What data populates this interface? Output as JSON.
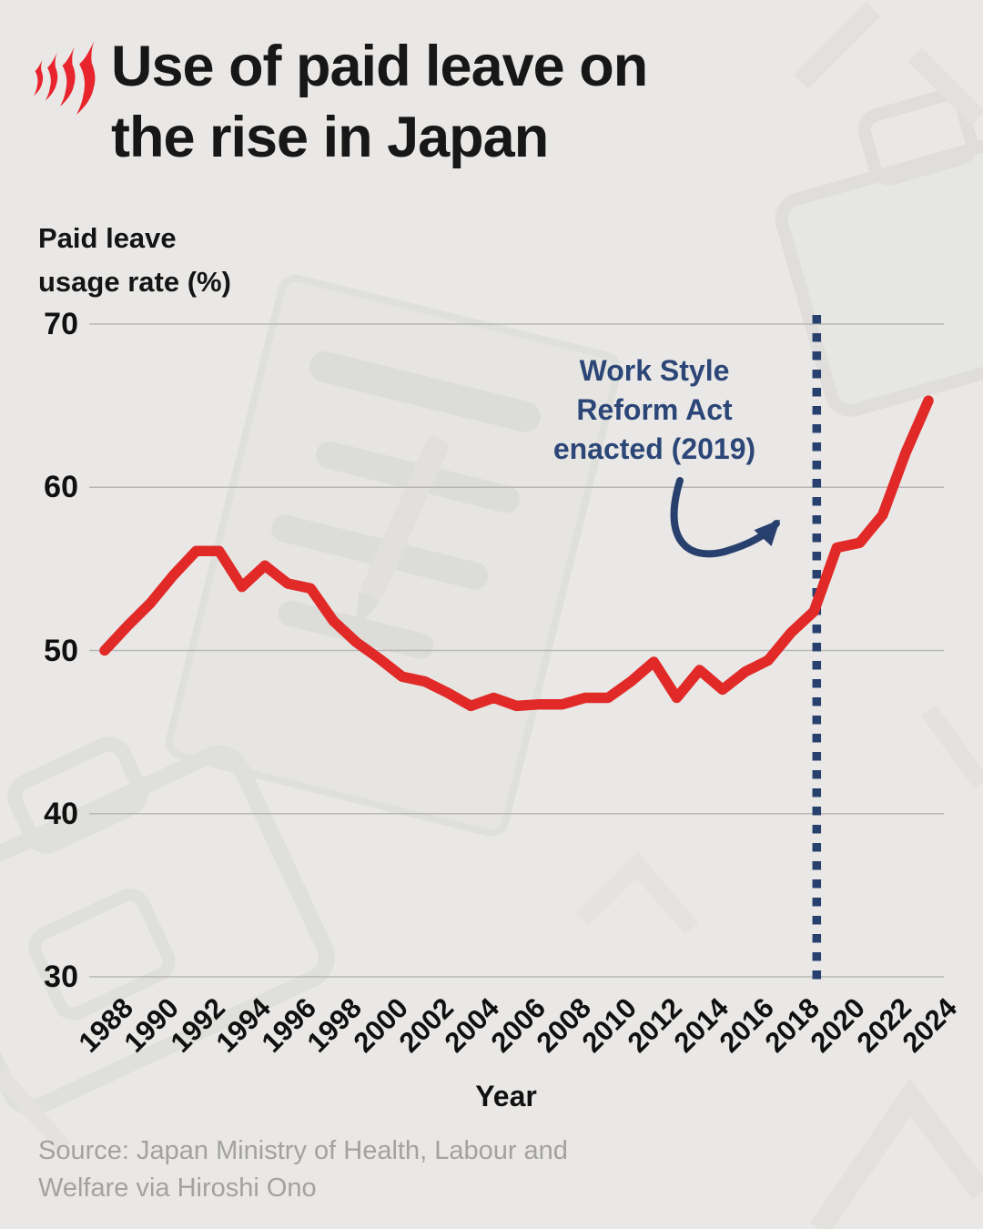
{
  "brand": {
    "logo_icon": "sbs-mercator-icon",
    "logo_color": "#e8242c"
  },
  "title": {
    "lines": [
      "Use of paid leave on",
      "the rise in Japan"
    ]
  },
  "y_axis": {
    "label_lines": [
      "Paid leave",
      "usage rate (%)"
    ],
    "ticks": [
      "70",
      "60",
      "50",
      "40",
      "30"
    ]
  },
  "x_axis": {
    "title": "Year",
    "ticks": [
      "1988",
      "1990",
      "1992",
      "1994",
      "1996",
      "1998",
      "2000",
      "2002",
      "2004",
      "2006",
      "2008",
      "2010",
      "2012",
      "2014",
      "2016",
      "2018",
      "2020",
      "2022",
      "2024"
    ]
  },
  "annotation": {
    "lines": [
      "Work Style",
      "Reform Act",
      "enacted (2019)"
    ],
    "color": "#2b4677"
  },
  "source": {
    "lines": [
      "Source: Japan Ministry of Health, Labour and",
      "Welfare via Hiroshi Ono"
    ]
  },
  "chart_data": {
    "type": "line",
    "title": "Use of paid leave on the rise in Japan",
    "xlabel": "Year",
    "ylabel": "Paid leave usage rate (%)",
    "xlim": [
      1988,
      2024
    ],
    "ylim": [
      30,
      70
    ],
    "y_gridlines": [
      30,
      40,
      50,
      60,
      70
    ],
    "x_tick_step": 2,
    "grid": "horizontal-only",
    "legend": "none",
    "line_color": "#e12a28",
    "line_width": 11.5,
    "x": [
      1988,
      1989,
      1990,
      1991,
      1992,
      1993,
      1994,
      1995,
      1996,
      1997,
      1998,
      1999,
      2000,
      2001,
      2002,
      2003,
      2004,
      2005,
      2006,
      2007,
      2008,
      2009,
      2010,
      2011,
      2012,
      2013,
      2014,
      2015,
      2016,
      2017,
      2018,
      2019,
      2020,
      2021,
      2022,
      2023,
      2024
    ],
    "y": [
      50.0,
      51.5,
      52.9,
      54.6,
      56.1,
      56.1,
      53.9,
      55.2,
      54.1,
      53.8,
      51.8,
      50.5,
      49.5,
      48.4,
      48.1,
      47.4,
      46.6,
      47.1,
      46.6,
      46.7,
      46.7,
      47.1,
      47.1,
      48.1,
      49.3,
      47.1,
      48.8,
      47.6,
      48.7,
      49.4,
      51.1,
      52.4,
      56.3,
      56.6,
      58.3,
      62.1,
      65.3
    ],
    "vline": {
      "year": 2019,
      "style": "dotted",
      "color": "#28406e",
      "label": "Work Style Reform Act enacted (2019)"
    }
  }
}
